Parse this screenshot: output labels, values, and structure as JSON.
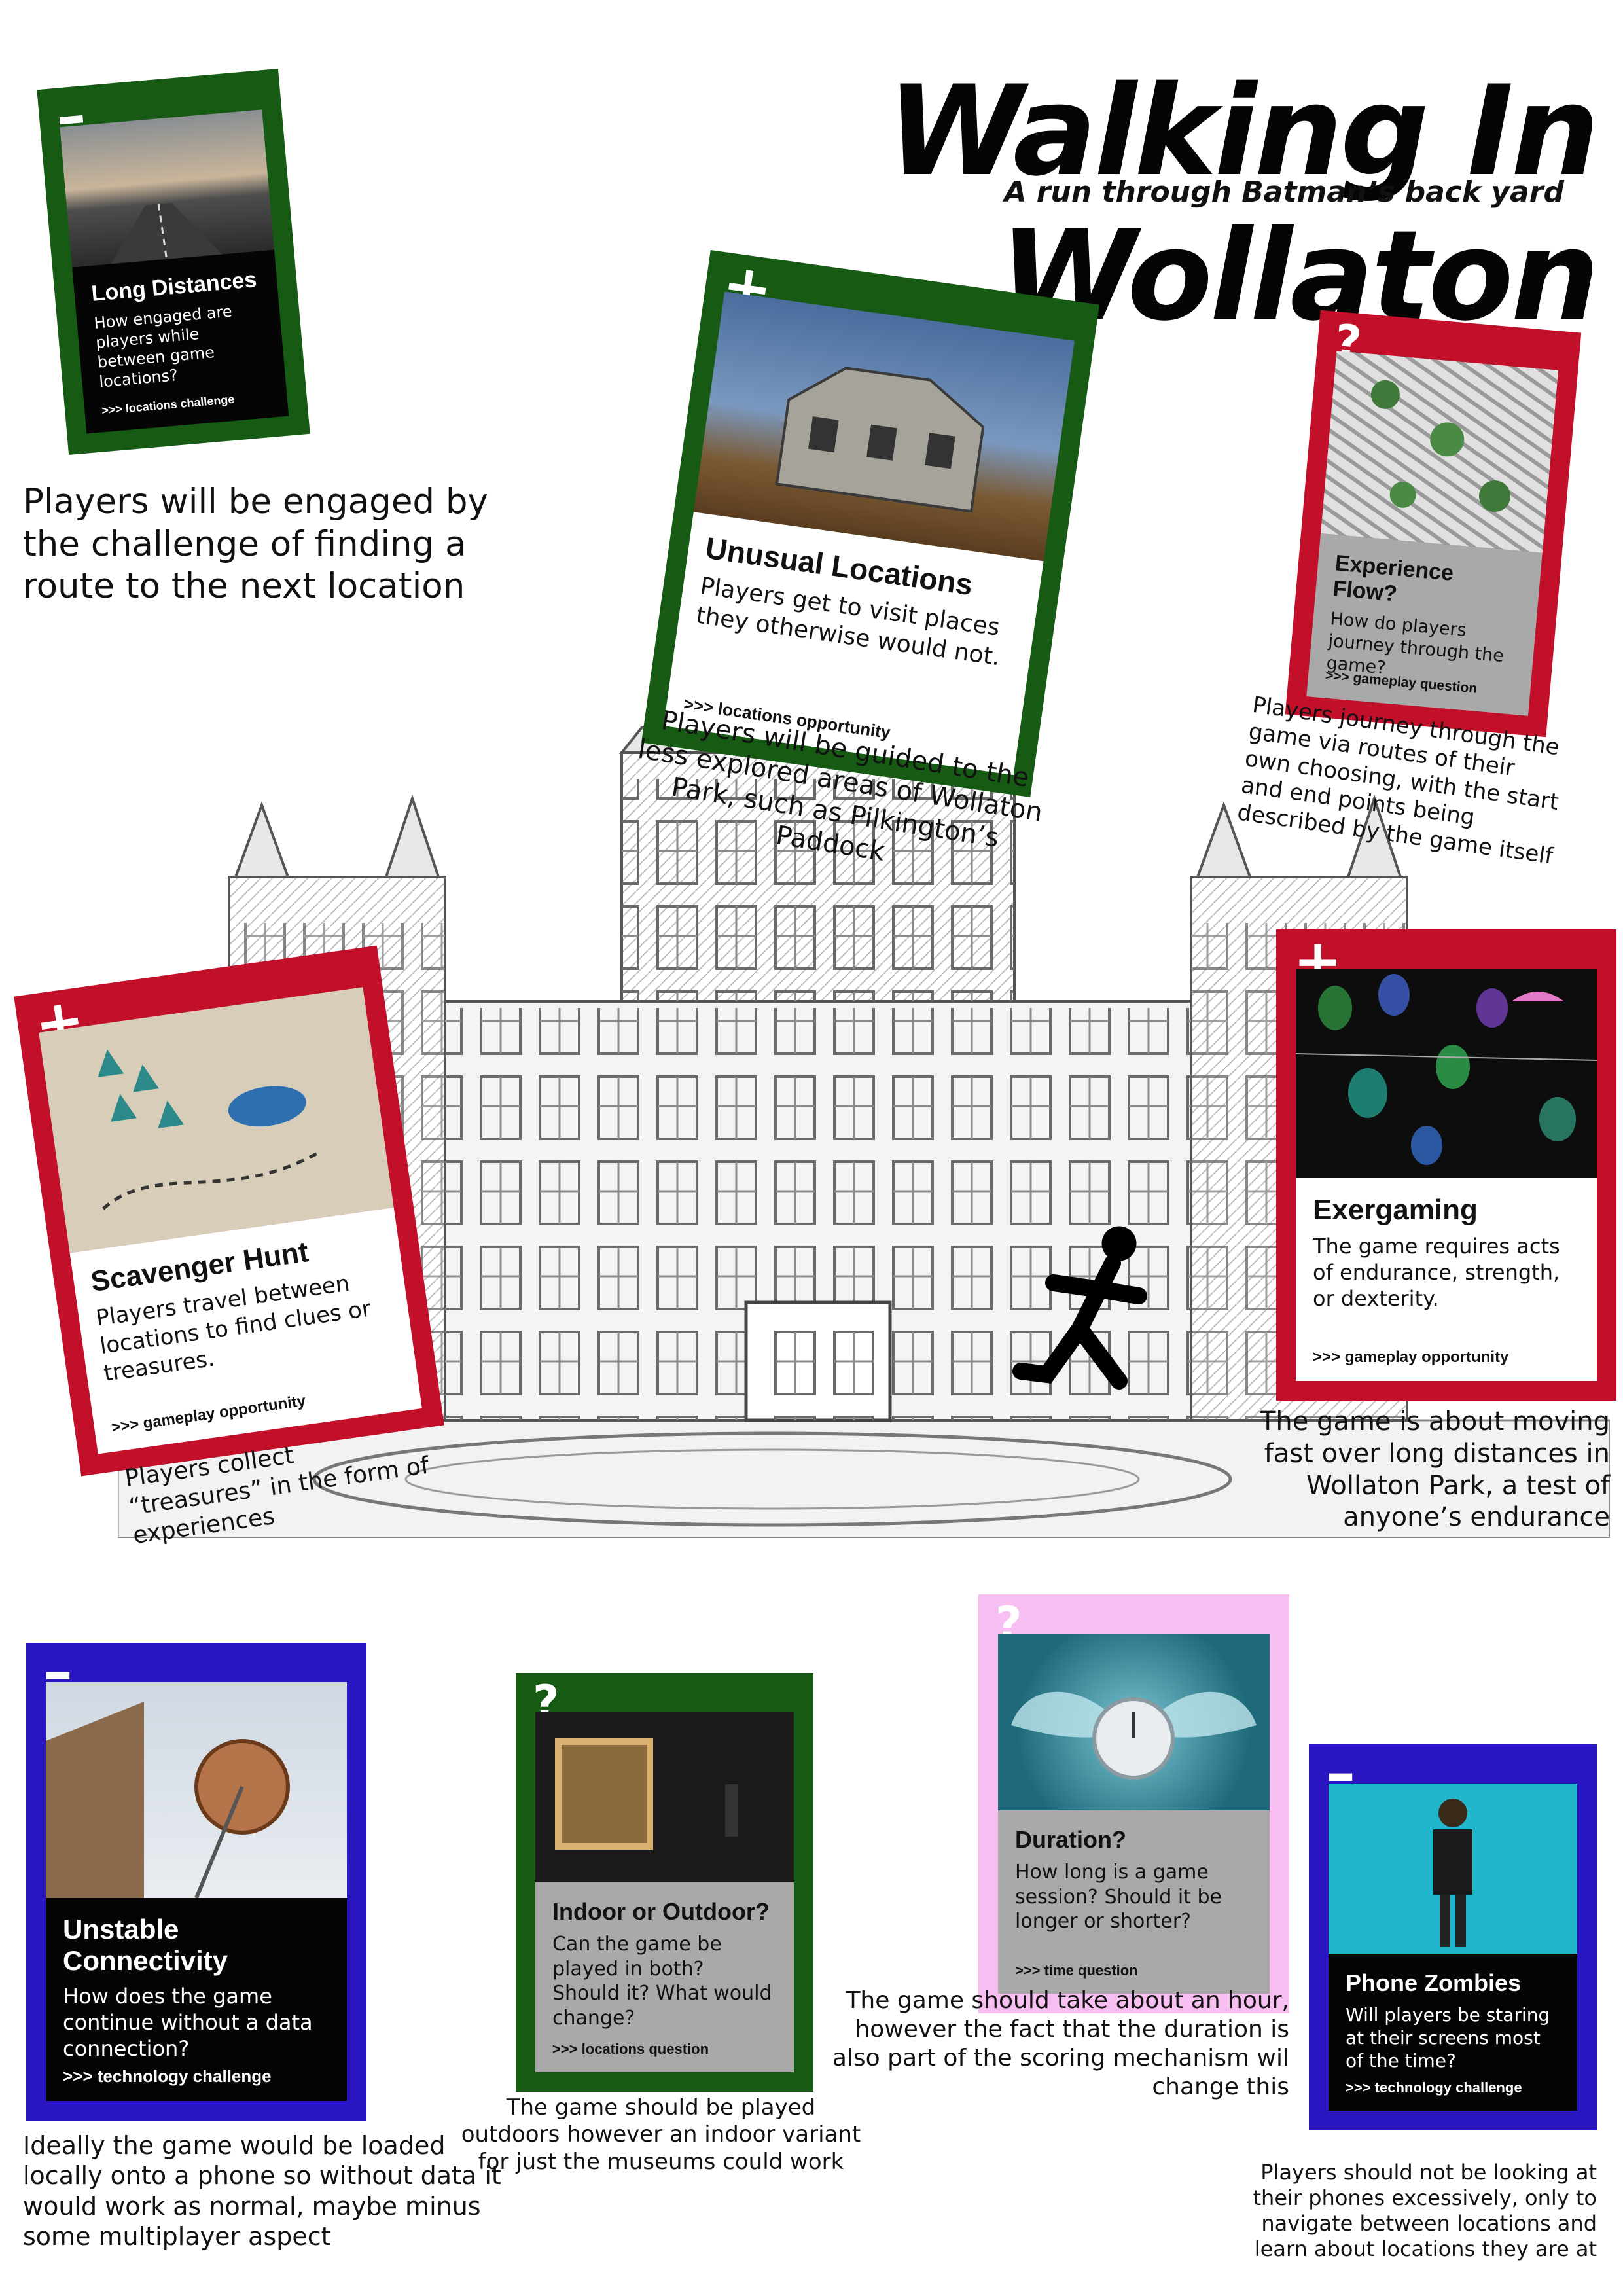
{
  "title": "Walking In Wollaton",
  "subtitle": "A run through Batman’s back yard",
  "colors": {
    "green": "#165a14",
    "red": "#c2102b",
    "blue": "#2a16c0",
    "pink": "#f8bff2"
  },
  "cards": {
    "long_distances": {
      "symbol": "–",
      "icon": "minus-icon",
      "title": "Long Distances",
      "desc": "How engaged are players while between game locations?",
      "tag": ">>> locations challenge"
    },
    "unusual_locations": {
      "symbol": "+",
      "icon": "plus-icon",
      "title": "Unusual Locations",
      "desc": "Players get to visit places they otherwise would not.",
      "tag": ">>> locations opportunity"
    },
    "experience_flow": {
      "symbol": "?",
      "icon": "question-icon",
      "title": "Experience Flow?",
      "desc": "How do players journey through the game?",
      "tag": ">>> gameplay question"
    },
    "scavenger_hunt": {
      "symbol": "+",
      "icon": "plus-icon",
      "title": "Scavenger Hunt",
      "desc": "Players travel between locations to find clues or treasures.",
      "tag": ">>> gameplay opportunity"
    },
    "exergaming": {
      "symbol": "+",
      "icon": "plus-icon",
      "title": "Exergaming",
      "desc": "The game requires acts of endurance, strength, or dexterity.",
      "tag": ">>> gameplay opportunity"
    },
    "unstable_connectivity": {
      "symbol": "–",
      "icon": "minus-icon",
      "title": "Unstable Connectivity",
      "desc": "How does the game continue without a data connection?",
      "tag": ">>> technology challenge"
    },
    "indoor_outdoor": {
      "symbol": "?",
      "icon": "question-icon",
      "title": "Indoor or Outdoor?",
      "desc": "Can the game be played in both? Should it? What would change?",
      "tag": ">>> locations question"
    },
    "duration": {
      "symbol": "?",
      "icon": "question-icon",
      "title": "Duration?",
      "desc": "How long is a game session? Should it be longer or shorter?",
      "tag": ">>> time question"
    },
    "phone_zombies": {
      "symbol": "–",
      "icon": "minus-icon",
      "title": "Phone Zombies",
      "desc": "Will players be staring at their screens most of the time?",
      "tag": ">>> technology challenge"
    }
  },
  "notes": {
    "engaged": "Players will be engaged by the challenge of finding a route to the next location",
    "guided": "Players will be guided to the less explored areas of Wollaton Park, such as Pilkington’s Paddock",
    "journey": "Players journey through the game via routes of their own choosing, with the start and end points being described by the game itself",
    "treasures": "Players collect “treasures” in the form of experiences",
    "moving_fast": "The game is about moving fast over long distances in Wollaton Park, a test of anyone’s endurance",
    "loaded_locally": "Ideally the game would be loaded locally onto a phone so without data it would work as normal, maybe minus some multiplayer aspect",
    "outdoors": "The game should be played outdoors however an indoor variant for just the museums could work",
    "hour": "The game should take about an hour, however the fact that the duration is also part of the scoring mechanism wil change this",
    "phones": "Players should not be looking at their phones excessively, only to navigate between locations and learn about locations they are at"
  }
}
